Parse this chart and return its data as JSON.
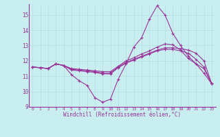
{
  "xlabel": "Windchill (Refroidissement éolien,°C)",
  "bg_color": "#c8eef0",
  "line_color": "#993399",
  "grid_color": "#b8dde0",
  "xlim": [
    -0.5,
    23.5
  ],
  "ylim": [
    9.0,
    15.7
  ],
  "yticks": [
    9,
    10,
    11,
    12,
    13,
    14,
    15
  ],
  "xticks": [
    0,
    1,
    2,
    3,
    4,
    5,
    6,
    7,
    8,
    9,
    10,
    11,
    12,
    13,
    14,
    15,
    16,
    17,
    18,
    19,
    20,
    21,
    22,
    23
  ],
  "series": [
    [
      11.6,
      11.55,
      11.5,
      11.8,
      11.7,
      11.1,
      10.7,
      10.4,
      9.6,
      9.3,
      9.5,
      10.8,
      11.8,
      12.9,
      13.5,
      14.7,
      15.6,
      15.0,
      13.8,
      13.0,
      12.3,
      11.8,
      11.5,
      10.5
    ],
    [
      11.6,
      11.55,
      11.5,
      11.8,
      11.7,
      11.45,
      11.4,
      11.35,
      11.3,
      11.2,
      11.2,
      11.6,
      11.9,
      12.1,
      12.3,
      12.5,
      12.7,
      12.85,
      12.85,
      12.8,
      12.7,
      12.5,
      12.0,
      10.5
    ],
    [
      11.6,
      11.55,
      11.5,
      11.8,
      11.7,
      11.5,
      11.45,
      11.4,
      11.35,
      11.3,
      11.3,
      11.65,
      12.0,
      12.2,
      12.45,
      12.65,
      12.9,
      13.1,
      13.05,
      12.7,
      12.15,
      11.8,
      11.2,
      10.5
    ],
    [
      11.6,
      11.55,
      11.5,
      11.8,
      11.7,
      11.4,
      11.35,
      11.3,
      11.25,
      11.15,
      11.15,
      11.55,
      11.85,
      12.05,
      12.25,
      12.45,
      12.65,
      12.75,
      12.75,
      12.65,
      12.5,
      12.1,
      11.6,
      10.5
    ]
  ]
}
